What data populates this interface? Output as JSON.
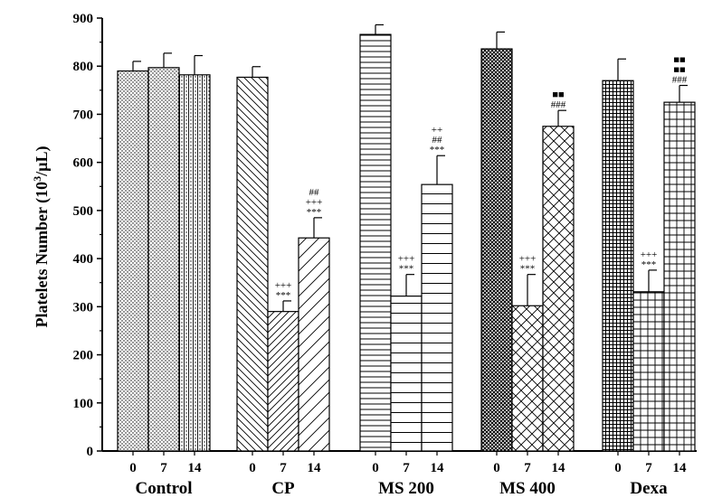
{
  "chart_data": {
    "type": "bar",
    "ylabel_main": "Platelets Number (10",
    "ylabel_sup": "3",
    "ylabel_end": "/µL)",
    "ylim": [
      0,
      900
    ],
    "yticks": [
      "0",
      "100",
      "200",
      "300",
      "400",
      "500",
      "600",
      "700",
      "800",
      "900"
    ],
    "legend": "none",
    "groups": [
      {
        "name": "Control",
        "bars": [
          {
            "day": "0",
            "value": 790,
            "error": 20,
            "pattern": "dots",
            "annotations": []
          },
          {
            "day": "7",
            "value": 797,
            "error": 30,
            "pattern": "dots",
            "annotations": []
          },
          {
            "day": "14",
            "value": 782,
            "error": 40,
            "pattern": "vlines",
            "annotations": []
          }
        ]
      },
      {
        "name": "CP",
        "bars": [
          {
            "day": "0",
            "value": 777,
            "error": 22,
            "pattern": "diag-down",
            "annotations": []
          },
          {
            "day": "7",
            "value": 290,
            "error": 22,
            "pattern": "diag-up",
            "annotations": [
              "***",
              "+++"
            ]
          },
          {
            "day": "14",
            "value": 443,
            "error": 42,
            "pattern": "diag-up-wide",
            "annotations": [
              "***",
              "+++",
              "##"
            ]
          }
        ]
      },
      {
        "name": "MS 200",
        "bars": [
          {
            "day": "0",
            "value": 866,
            "error": 20,
            "pattern": "hlines",
            "annotations": []
          },
          {
            "day": "7",
            "value": 322,
            "error": 45,
            "pattern": "hlines-wide",
            "annotations": [
              "***",
              "+++"
            ]
          },
          {
            "day": "14",
            "value": 554,
            "error": 60,
            "pattern": "hlines-wide",
            "annotations": [
              "***",
              "##",
              "++"
            ]
          }
        ]
      },
      {
        "name": "MS 400",
        "bars": [
          {
            "day": "0",
            "value": 836,
            "error": 35,
            "pattern": "dense-cross",
            "annotations": []
          },
          {
            "day": "7",
            "value": 302,
            "error": 65,
            "pattern": "crosshatch",
            "annotations": [
              "***",
              "+++"
            ]
          },
          {
            "day": "14",
            "value": 675,
            "error": 33,
            "pattern": "crosshatch",
            "annotations": [
              "###",
              "■■"
            ]
          }
        ]
      },
      {
        "name": "Dexa",
        "bars": [
          {
            "day": "0",
            "value": 770,
            "error": 45,
            "pattern": "dense-grid",
            "annotations": []
          },
          {
            "day": "7",
            "value": 331,
            "error": 45,
            "pattern": "grid",
            "annotations": [
              "***",
              "+++"
            ]
          },
          {
            "day": "14",
            "value": 725,
            "error": 35,
            "pattern": "grid",
            "annotations": [
              "###",
              "■■",
              "■■"
            ]
          }
        ]
      }
    ]
  }
}
